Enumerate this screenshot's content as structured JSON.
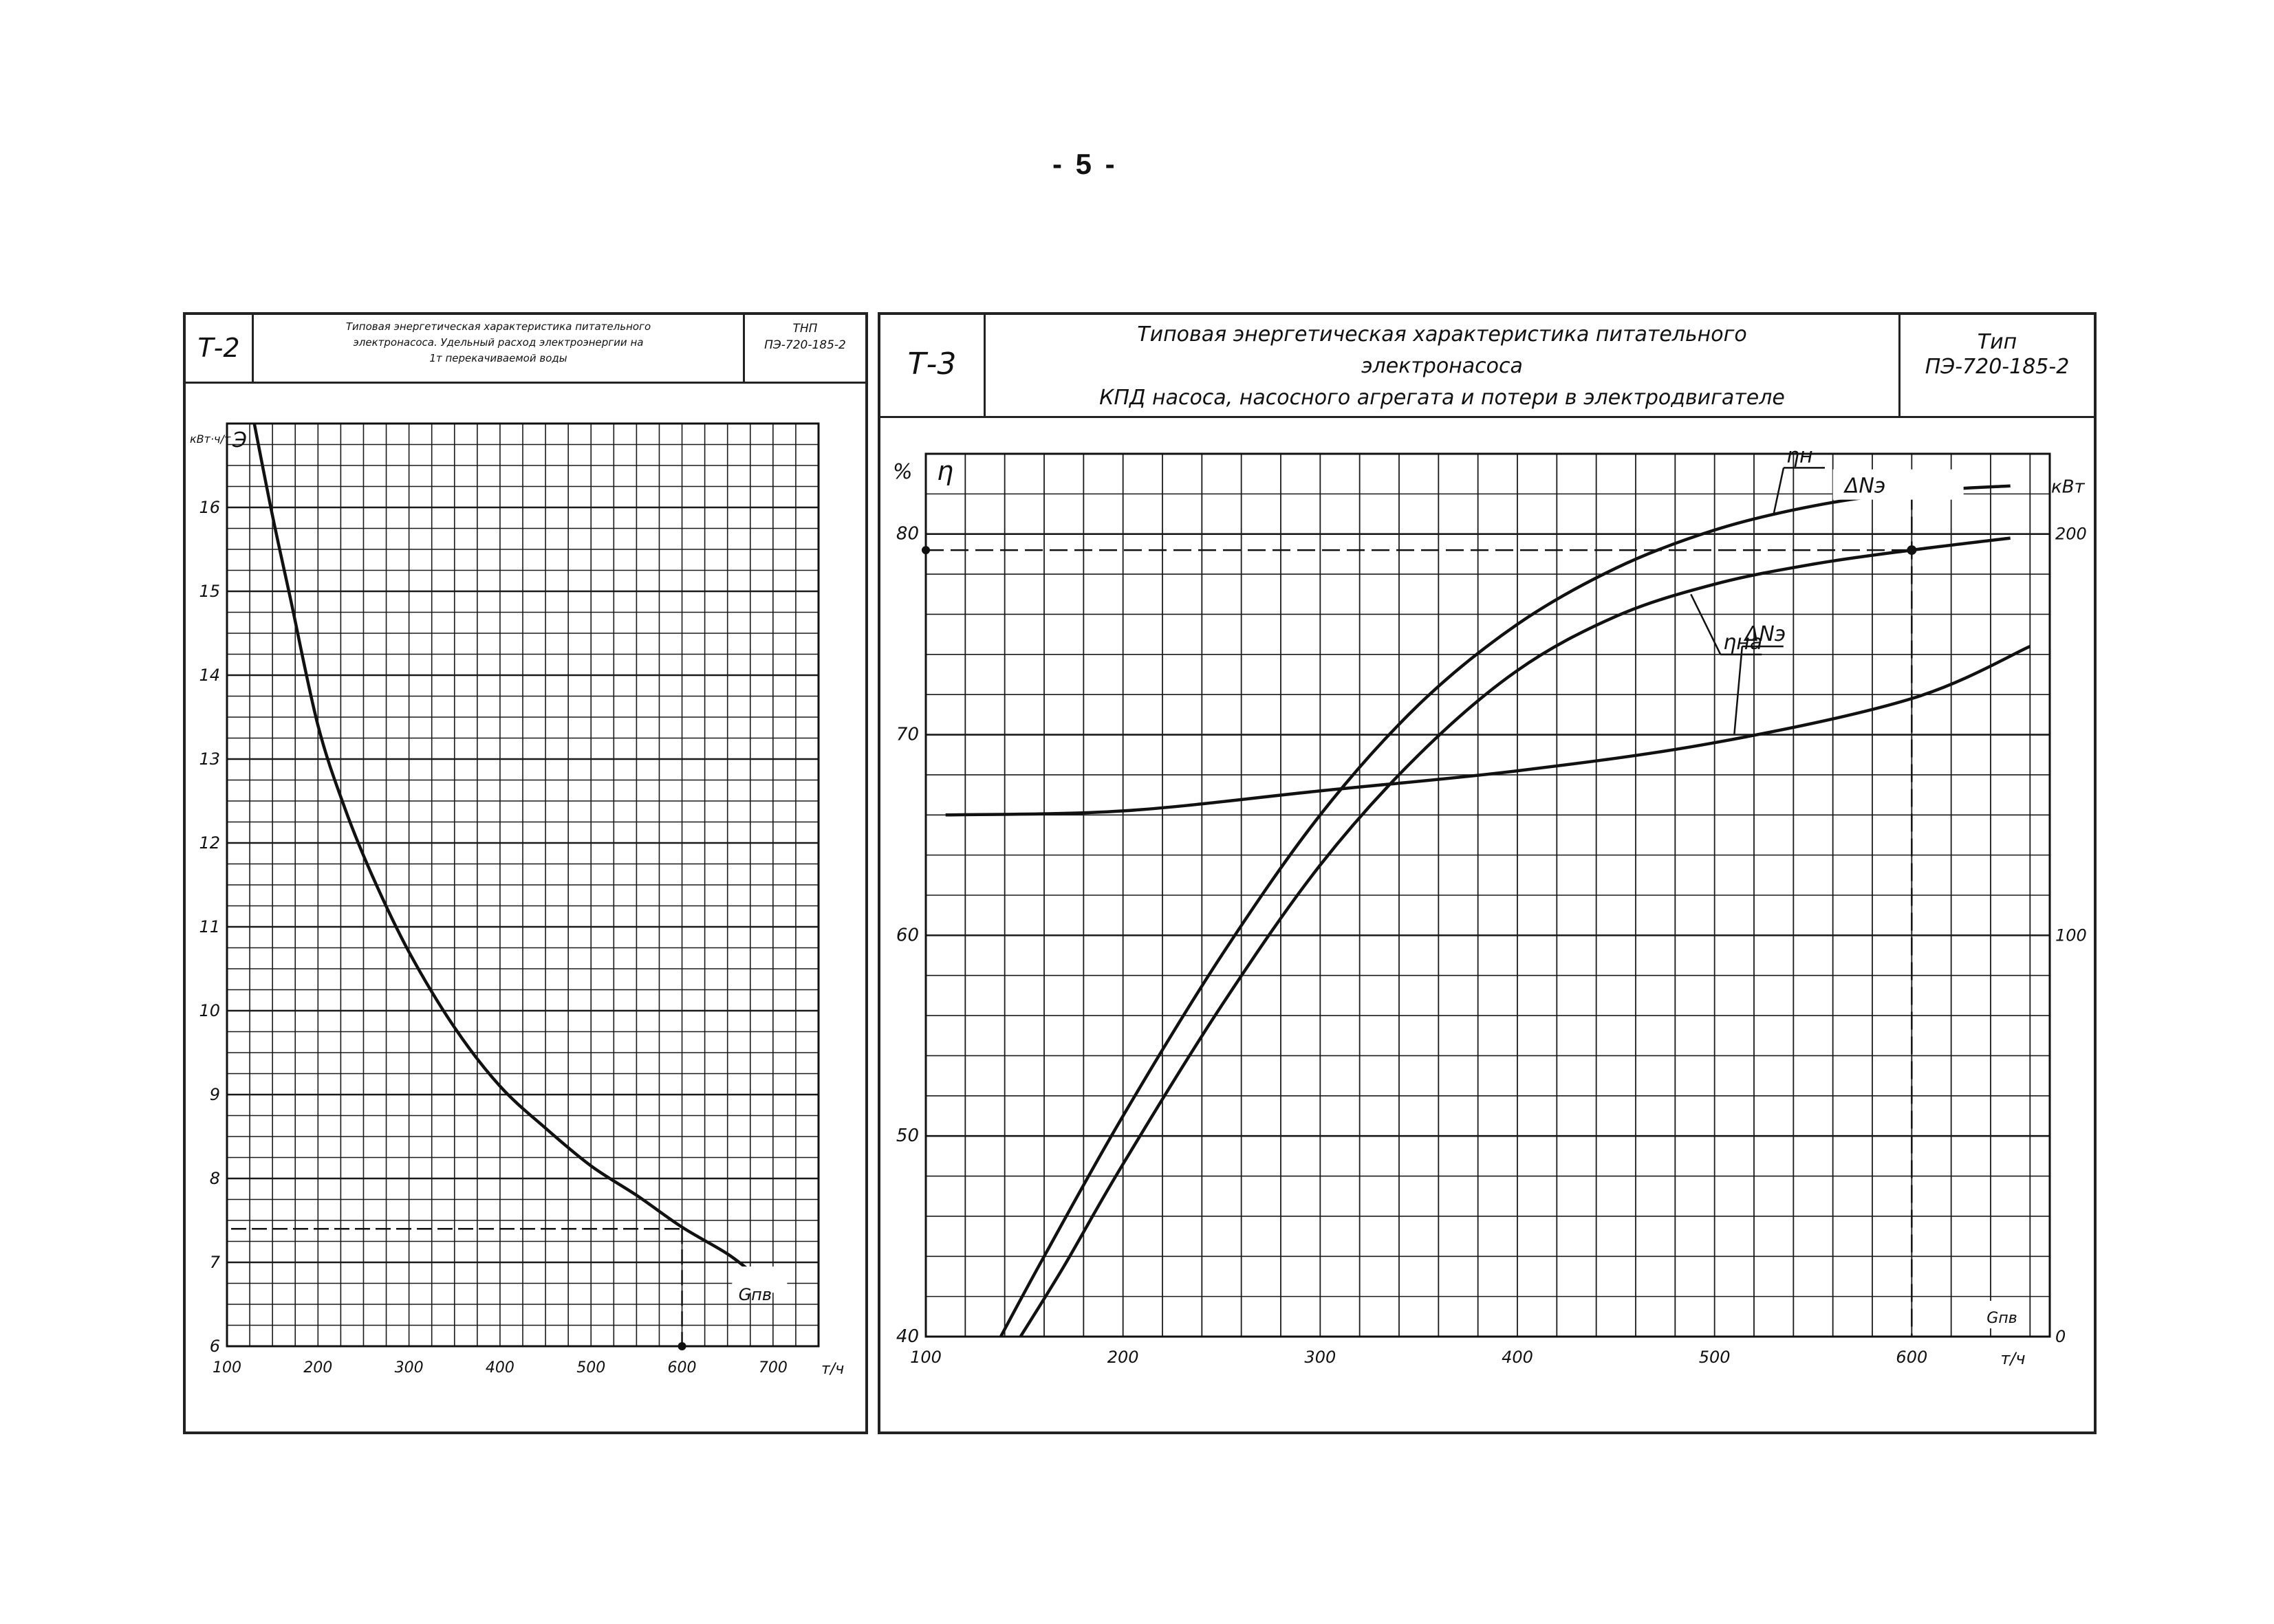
{
  "page": {
    "number": "- 5 -"
  },
  "sheet_left": {
    "code": "Т-2",
    "title_lines": [
      "Типовая энергетическая характеристика питательного",
      "электронасоса. Удельный расход электроэнергии на",
      "1т перекачиваемой воды"
    ],
    "type_lines": [
      "ТНП",
      "ПЭ-720-185-2"
    ]
  },
  "sheet_right": {
    "code": "Т-3",
    "title_lines": [
      "Типовая энергетическая характеристика питательного",
      "электронасоса",
      "КПД насоса, насосного агрегата и потери в электродвигателе"
    ],
    "type_lines": [
      "Тип",
      "ПЭ-720-185-2"
    ]
  },
  "chart_data": [
    {
      "type": "line",
      "title": "",
      "ylabel": "Э",
      "yunit": "кВт·ч/т",
      "xlabel": "Gпв",
      "xunit": "т/ч",
      "xlim": [
        100,
        750
      ],
      "ylim": [
        6,
        17
      ],
      "x_ticks": [
        100,
        200,
        300,
        400,
        500,
        600,
        700
      ],
      "x_tick_labels": [
        "100",
        "200",
        "300",
        "400",
        "500",
        "600",
        "700"
      ],
      "y_ticks": [
        6,
        7,
        8,
        9,
        10,
        11,
        12,
        13,
        14,
        15,
        16
      ],
      "y_tick_labels": [
        "6",
        "7",
        "8",
        "9",
        "10",
        "11",
        "12",
        "13",
        "14",
        "15",
        "16"
      ],
      "grid": true,
      "series": [
        {
          "name": "",
          "x": [
            130,
            150,
            170,
            200,
            230,
            260,
            300,
            350,
            400,
            450,
            500,
            550,
            600,
            650,
            680
          ],
          "y": [
            17.0,
            15.9,
            14.9,
            13.4,
            12.4,
            11.6,
            10.7,
            9.8,
            9.1,
            8.6,
            8.15,
            7.8,
            7.42,
            7.1,
            6.85
          ]
        }
      ],
      "reference_point": {
        "x": 600,
        "y": 7.4
      },
      "grid_color": "#1a1a1a",
      "line_color": "#111111"
    },
    {
      "type": "line",
      "title": "",
      "ylabel": "η",
      "yunit": "%",
      "y2label": "ΔNэ",
      "y2unit": "кВт",
      "xlabel": "Gпв",
      "xunit": "т/ч",
      "xlim": [
        100,
        670
      ],
      "ylim": [
        40,
        84
      ],
      "y2lim": [
        0,
        220
      ],
      "x_ticks": [
        100,
        200,
        300,
        400,
        500,
        600
      ],
      "x_tick_labels": [
        "100",
        "200",
        "300",
        "400",
        "500",
        "600"
      ],
      "y_ticks": [
        40,
        50,
        60,
        70,
        80
      ],
      "y_tick_labels": [
        "40",
        "50",
        "60",
        "70",
        "80"
      ],
      "y2_ticks": [
        0,
        100,
        200
      ],
      "y2_tick_labels": [
        "0",
        "100",
        "200"
      ],
      "grid": true,
      "series": [
        {
          "name": "ηн",
          "axis": "left",
          "x": [
            138,
            160,
            200,
            250,
            300,
            350,
            400,
            450,
            500,
            550,
            600,
            650
          ],
          "y": [
            40,
            44,
            51,
            59,
            66,
            71.5,
            75.5,
            78.3,
            80.2,
            81.4,
            82.1,
            82.4
          ]
        },
        {
          "name": "ηна",
          "axis": "left",
          "x": [
            148,
            170,
            200,
            250,
            300,
            350,
            400,
            450,
            500,
            550,
            600,
            650
          ],
          "y": [
            40,
            43.5,
            48.6,
            56.5,
            63.5,
            69,
            73.2,
            75.9,
            77.5,
            78.5,
            79.2,
            79.8
          ]
        },
        {
          "name": "ΔNэ",
          "axis": "right",
          "x": [
            110,
            200,
            300,
            400,
            500,
            600,
            660
          ],
          "y": [
            130,
            131,
            136,
            141,
            148,
            159,
            172
          ]
        }
      ],
      "reference_points": [
        {
          "x": 600,
          "y": 82.1
        },
        {
          "x": 600,
          "y": 79.2
        }
      ],
      "reference_level_y": 79.2,
      "grid_color": "#1a1a1a",
      "line_color": "#111111"
    }
  ]
}
